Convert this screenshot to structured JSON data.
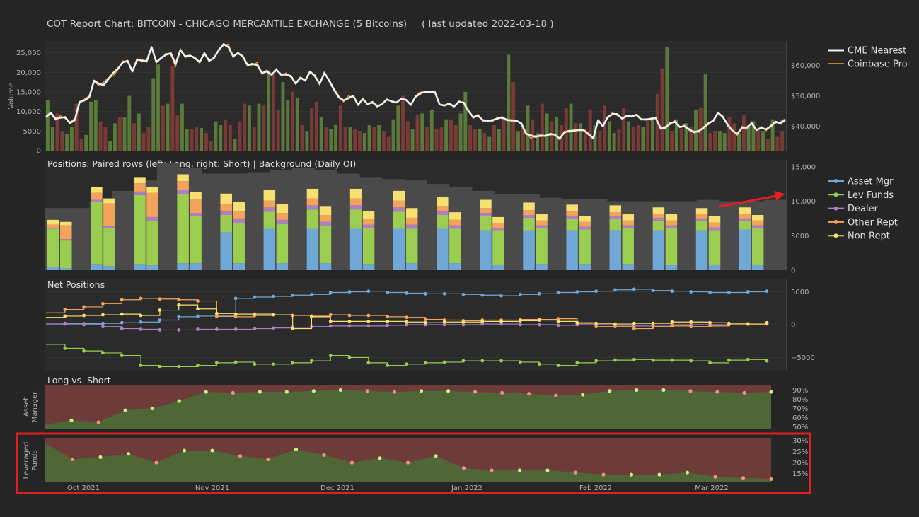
{
  "header": {
    "title": "COT Report Chart:   BITCOIN - CHICAGO MERCANTILE EXCHANGE   (5 Bitcoins)",
    "updated": "( last updated 2022-03-18 )"
  },
  "colors": {
    "bg": "#252525",
    "plot_bg": "#2b2b2b",
    "grid": "#3a3a3a",
    "bull": "#5a7a3a",
    "bear": "#7a3a36",
    "cme": "#f0f0f0",
    "coinbase": "#f0a030",
    "asset_mgr": "#6fa8d6",
    "lev_funds": "#9acd50",
    "dealer": "#b07ec6",
    "other_rept": "#f3a35c",
    "non_rept": "#f6e070",
    "oi": "#4a4a4a",
    "long_area": "#4f6636",
    "short_area": "#6e3c38",
    "highlight": "#e02020"
  },
  "x_axis_labels": [
    "Oct 2021",
    "Nov 2021",
    "Dec 2021",
    "Jan 2022",
    "Feb 2022",
    "Mar 2022"
  ],
  "chart_data": [
    {
      "type": "bar+line",
      "name": "volume-price",
      "ylabel": "Volume",
      "y_ticks": [
        "0",
        "5000",
        "10,000",
        "15,000",
        "20,000",
        "25,000"
      ],
      "y2_ticks": [
        "$40,000",
        "$50,000",
        "$60,000"
      ],
      "legend": [
        "CME Nearest",
        "Coinbase Pro"
      ],
      "volume": [
        13000,
        6000,
        9500,
        5000,
        4200,
        6000,
        12000,
        3000,
        4000,
        12500,
        13000,
        7500,
        6000,
        2500,
        7000,
        8500,
        8500,
        14000,
        7000,
        9500,
        4500,
        6000,
        18500,
        22000,
        11500,
        12000,
        21500,
        9000,
        12000,
        5500,
        5500,
        6000,
        5800,
        4500,
        2500,
        7500,
        6500,
        8000,
        6500,
        3000,
        7500,
        12000,
        11500,
        6000,
        12000,
        11500,
        20500,
        20000,
        10500,
        17500,
        13000,
        15000,
        13500,
        6500,
        5000,
        11000,
        12500,
        8500,
        6000,
        5500,
        6500,
        11500,
        6000,
        6000,
        5500,
        5000,
        4500,
        6500,
        6000,
        6500,
        5000,
        3500,
        8000,
        11500,
        14000,
        7500,
        5500,
        9000,
        9500,
        6000,
        10500,
        5500,
        6000,
        8000,
        8000,
        6500,
        9500,
        15000,
        6500,
        5500,
        5500,
        4500,
        3500,
        6500,
        5500,
        8500,
        24500,
        17500,
        5000,
        6000,
        11500,
        8000,
        4500,
        12000,
        9500,
        7500,
        8500,
        6500,
        11000,
        12000,
        7000,
        7000,
        5500,
        10500,
        6500,
        5000,
        11500,
        7500,
        4500,
        5500,
        11000,
        7500,
        6000,
        6500,
        6000,
        8000,
        8500,
        14500,
        21000,
        26500,
        5000,
        8000,
        5500,
        7000,
        6000,
        10500,
        11000,
        19500,
        4500,
        5000,
        5000,
        4500,
        8500,
        7000,
        4500,
        9000,
        6500,
        7500,
        5500,
        5000,
        3000,
        8000,
        3500,
        5000
      ],
      "volume_up": [
        1,
        1,
        0,
        0,
        1,
        1,
        0,
        0,
        1,
        1,
        1,
        0,
        0,
        1,
        1,
        0,
        1,
        1,
        0,
        1,
        0,
        0,
        1,
        1,
        0,
        1,
        0,
        0,
        1,
        1,
        0,
        0,
        1,
        0,
        0,
        1,
        1,
        0,
        0,
        1,
        0,
        0,
        1,
        0,
        1,
        0,
        1,
        0,
        0,
        1,
        1,
        0,
        1,
        0,
        1,
        0,
        0,
        1,
        0,
        1,
        1,
        0,
        0,
        1,
        0,
        0,
        1,
        1,
        0,
        1,
        0,
        0,
        1,
        1,
        0,
        0,
        1,
        0,
        1,
        0,
        1,
        0,
        0,
        1,
        0,
        0,
        1,
        1,
        0,
        0,
        1,
        0,
        1,
        0,
        1,
        0,
        1,
        0,
        1,
        0,
        1,
        0,
        1,
        0,
        1,
        0,
        1,
        0,
        0,
        1,
        0,
        1,
        0,
        0,
        1,
        0,
        0,
        1,
        1,
        0,
        0,
        1,
        0,
        0,
        1,
        0,
        1,
        0,
        0,
        1,
        0,
        1,
        0,
        1,
        0,
        1,
        0,
        1,
        0,
        0,
        1,
        1,
        0,
        0,
        1,
        0,
        1,
        1,
        0,
        1,
        0,
        1,
        0,
        0,
        1,
        0
      ],
      "cme_nearest": [
        43000,
        44500,
        42500,
        42800,
        43000,
        41000,
        42000,
        48000,
        48500,
        49500,
        55000,
        54000,
        53500,
        55500,
        57500,
        59000,
        61000,
        61500,
        58000,
        62000,
        61500,
        61500,
        66000,
        61000,
        62500,
        63500,
        64000,
        60500,
        65000,
        63000,
        63200,
        62500,
        61000,
        64000,
        61500,
        62500,
        65000,
        67000,
        66000,
        63000,
        64000,
        63000,
        60000,
        60500,
        60000,
        57500,
        58000,
        57000,
        58500,
        57000,
        57000,
        56500,
        54000,
        56000,
        55000,
        58000,
        56500,
        54000,
        57500,
        55000,
        52000,
        49500,
        48500,
        49200,
        50000,
        47000,
        49000,
        47200,
        48000,
        46500,
        47300,
        48800,
        48200,
        47800,
        49000,
        48700,
        47000,
        49800,
        51000,
        51200,
        51300,
        51300,
        47200,
        46800,
        47500,
        46500,
        48000,
        47800,
        45000,
        43000,
        43500,
        42000,
        41800,
        42000,
        42500,
        43000,
        42000,
        42000,
        41800,
        41000,
        37500,
        37000,
        36500,
        37000,
        36800,
        37500,
        37200,
        36000,
        38000,
        38500,
        38500,
        38800,
        38700,
        37500,
        36000,
        42000,
        40000,
        43000,
        44000,
        44000,
        42500,
        43500,
        43200,
        43800,
        42300,
        42200,
        42500,
        42700,
        39500,
        39500,
        41000,
        41500,
        39800,
        40000,
        39000,
        38000,
        38500,
        39500,
        41000,
        41800,
        44500,
        43000,
        40500,
        38500,
        37500,
        39500,
        39600,
        41000,
        38800,
        39500,
        39000,
        40000,
        41500,
        41000,
        42000
      ],
      "coinbase_pro": [
        43500,
        44000,
        42000,
        43500,
        42500,
        41500,
        42500,
        47500,
        49000,
        50000,
        54500,
        53500,
        54500,
        56000,
        56500,
        58500,
        61500,
        61000,
        58500,
        61500,
        62000,
        61000,
        65500,
        61500,
        62000,
        64000,
        63500,
        59500,
        65500,
        62500,
        63500,
        62000,
        61500,
        63500,
        62000,
        62000,
        65500,
        66500,
        67000,
        62500,
        64500,
        62500,
        60500,
        60000,
        61000,
        57000,
        58500,
        56500,
        59000,
        56500,
        57500,
        56000,
        54500,
        55500,
        55500,
        57500,
        57000,
        53500,
        58000,
        54500,
        52500,
        50000,
        48000,
        50000,
        49500,
        47500,
        48500,
        47500,
        47500,
        47000,
        47000,
        49000,
        48000,
        48000,
        49000,
        48500,
        47500,
        49500,
        50500,
        51500,
        51000,
        51500,
        47000,
        47000,
        47000,
        46500,
        48500,
        47500,
        45500,
        42500,
        44000,
        41500,
        42000,
        41500,
        43000,
        42500,
        42500,
        41500,
        42000,
        40500,
        38000,
        36000,
        37000,
        36500,
        37000,
        37000,
        37500,
        35500,
        38500,
        38000,
        39000,
        38500,
        39000,
        37000,
        36500,
        41500,
        40500,
        42500,
        44500,
        43500,
        43000,
        43000,
        43500,
        43500,
        42000,
        42500,
        42000,
        43000,
        39000,
        40000,
        40500,
        42000,
        39500,
        40500,
        38500,
        38500,
        38000,
        40000,
        40500,
        42000,
        44000,
        43500,
        40000,
        39000,
        37000,
        40000,
        39000,
        41500,
        38500,
        40000,
        38500,
        40500,
        41000,
        41500,
        42500
      ],
      "y_range": [
        0,
        28000
      ],
      "y2_range": [
        32000,
        68000
      ]
    },
    {
      "type": "stacked-bar",
      "name": "positions",
      "title": "Positions: Paired rows (left: Long, right: Short) | Background (Daily OI)",
      "y_ticks": [
        "0",
        "5000",
        "10,000",
        "15,000"
      ],
      "y_range": [
        0,
        16000
      ],
      "legend": [
        "Asset Mgr",
        "Lev Funds",
        "Dealer",
        "Other Rept",
        "Non Rept"
      ],
      "oi": [
        9000,
        9000,
        10000,
        11500,
        13000,
        15500,
        14800,
        14000,
        14000,
        14200,
        14500,
        14800,
        14500,
        14000,
        13500,
        13200,
        13000,
        12500,
        12000,
        11500,
        11000,
        11000,
        10500,
        10300,
        10300,
        10000,
        10000,
        10000,
        10000,
        10200,
        10000,
        10000,
        10200
      ],
      "long": [
        [
          500,
          5500,
          100,
          500,
          700
        ],
        [
          900,
          9000,
          300,
          1000,
          800
        ],
        [
          900,
          10000,
          500,
          1200,
          900
        ],
        [
          1000,
          10000,
          600,
          1300,
          1000
        ],
        [
          5500,
          2500,
          500,
          1100,
          1500
        ],
        [
          6000,
          2500,
          600,
          1000,
          1500
        ],
        [
          6000,
          2800,
          600,
          1000,
          1400
        ],
        [
          6000,
          2800,
          600,
          1000,
          1400
        ],
        [
          6000,
          2500,
          600,
          1000,
          1400
        ],
        [
          6000,
          2000,
          500,
          800,
          1300
        ],
        [
          5800,
          2000,
          500,
          700,
          1200
        ],
        [
          5800,
          1800,
          400,
          700,
          1100
        ],
        [
          5800,
          1600,
          400,
          700,
          1000
        ],
        [
          5800,
          1600,
          400,
          600,
          1000
        ],
        [
          5800,
          1400,
          400,
          600,
          900
        ],
        [
          5800,
          1300,
          400,
          600,
          900
        ],
        [
          5900,
          1200,
          400,
          700,
          900
        ]
      ],
      "short": [
        [
          300,
          4000,
          200,
          2000,
          500
        ],
        [
          600,
          5500,
          300,
          3300,
          700
        ],
        [
          700,
          6500,
          500,
          3500,
          900
        ],
        [
          1000,
          6800,
          500,
          2000,
          1000
        ],
        [
          1000,
          5800,
          700,
          1000,
          1400
        ],
        [
          1000,
          5700,
          600,
          1000,
          1300
        ],
        [
          1000,
          5500,
          500,
          1000,
          1300
        ],
        [
          900,
          5200,
          500,
          800,
          1200
        ],
        [
          1000,
          5000,
          600,
          1000,
          1400
        ],
        [
          1000,
          5000,
          500,
          800,
          1100
        ],
        [
          800,
          5000,
          300,
          700,
          900
        ],
        [
          900,
          5200,
          400,
          700,
          900
        ],
        [
          900,
          5000,
          400,
          700,
          900
        ],
        [
          900,
          5200,
          400,
          700,
          900
        ],
        [
          800,
          5300,
          400,
          700,
          900
        ],
        [
          800,
          5000,
          400,
          700,
          900
        ],
        [
          800,
          5300,
          400,
          700,
          800
        ]
      ]
    },
    {
      "type": "line",
      "name": "net-positions",
      "title": "Net Positions",
      "y_ticks": [
        "5000",
        "0",
        "−5000"
      ],
      "y_range": [
        -7000,
        7000
      ],
      "series": [
        {
          "name": "Asset Mgr",
          "values": [
            0,
            100,
            150,
            200,
            300,
            400,
            700,
            1200,
            1300,
            1250,
            4000,
            4200,
            4300,
            4500,
            4600,
            4900,
            5000,
            5100,
            4900,
            4800,
            4700,
            4700,
            4600,
            4500,
            4400,
            4600,
            4700,
            4900,
            5000,
            5100,
            5300,
            5400,
            5200,
            5100,
            5000,
            4900,
            4900,
            5000,
            5100
          ]
        },
        {
          "name": "Lev Funds",
          "values": [
            -3000,
            -3600,
            -4000,
            -4300,
            -4700,
            -6200,
            -6400,
            -6400,
            -6200,
            -5800,
            -5700,
            -6000,
            -6000,
            -5800,
            -5500,
            -4700,
            -5000,
            -5800,
            -6200,
            -6000,
            -5800,
            -5700,
            -5500,
            -5500,
            -5500,
            -5700,
            -6000,
            -6200,
            -5800,
            -5500,
            -5400,
            -5300,
            -5400,
            -5400,
            -5500,
            -5800,
            -5400,
            -5300,
            -5500
          ]
        },
        {
          "name": "Dealer",
          "values": [
            200,
            200,
            0,
            -300,
            -600,
            -700,
            -800,
            -800,
            -700,
            -700,
            -700,
            -600,
            -500,
            -400,
            -300,
            -200,
            -200,
            -200,
            -100,
            0,
            0,
            0,
            0,
            100,
            100,
            0,
            0,
            -100,
            0,
            0,
            -100,
            -200,
            -100,
            0,
            0,
            0,
            0,
            100,
            100
          ]
        },
        {
          "name": "Other Rept",
          "values": [
            1800,
            2300,
            2700,
            3200,
            3800,
            4000,
            3900,
            3800,
            3600,
            1300,
            1200,
            1400,
            1500,
            1400,
            1300,
            1500,
            1400,
            1400,
            1200,
            1100,
            800,
            700,
            600,
            700,
            700,
            800,
            800,
            900,
            200,
            -300,
            -300,
            -600,
            -300,
            -200,
            -300,
            -200,
            0,
            100,
            200
          ]
        },
        {
          "name": "Non Rept",
          "values": [
            1100,
            1300,
            1400,
            1500,
            1600,
            1400,
            2200,
            3000,
            2400,
            1700,
            1600,
            1600,
            1500,
            -600,
            1200,
            500,
            500,
            500,
            500,
            400,
            300,
            400,
            400,
            500,
            500,
            600,
            700,
            500,
            300,
            200,
            100,
            200,
            200,
            400,
            400,
            300,
            200,
            100,
            300
          ]
        }
      ]
    },
    {
      "type": "area",
      "name": "long-vs-short-asset-manager",
      "title": "Long vs. Short",
      "ylabel": "Asset\nManager",
      "y_ticks": [
        "90%",
        "80%",
        "70%",
        "60%",
        "50%"
      ],
      "y_range": [
        48,
        95
      ],
      "long_pct": [
        52,
        57,
        55,
        68,
        70,
        78,
        88,
        87,
        88,
        88,
        89,
        90,
        89,
        88,
        89,
        89,
        88,
        87,
        86,
        84,
        85,
        89,
        90,
        90,
        89,
        88,
        87,
        88
      ]
    },
    {
      "type": "area",
      "name": "long-vs-short-leveraged-funds",
      "ylabel": "Leveraged\nFunds",
      "y_ticks": [
        "30%",
        "25%",
        "20%",
        "15%"
      ],
      "y_range": [
        11,
        31
      ],
      "long_pct": [
        29,
        21.5,
        22.5,
        24,
        20,
        25.5,
        25.5,
        23,
        21.5,
        26,
        23.5,
        20,
        22,
        20,
        23,
        17.5,
        16.5,
        16.5,
        16.5,
        15.5,
        14.5,
        14.5,
        14.5,
        15.5,
        13.5,
        13,
        12.5
      ]
    }
  ]
}
